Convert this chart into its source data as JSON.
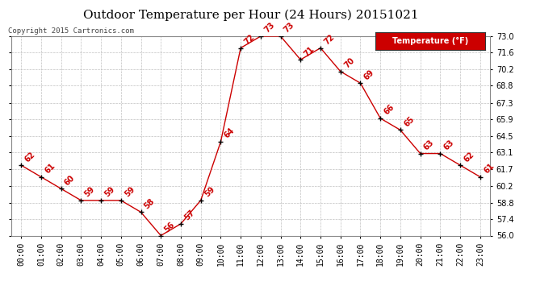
{
  "title": "Outdoor Temperature per Hour (24 Hours) 20151021",
  "copyright_text": "Copyright 2015 Cartronics.com",
  "legend_label": "Temperature (°F)",
  "hours": [
    0,
    1,
    2,
    3,
    4,
    5,
    6,
    7,
    8,
    9,
    10,
    11,
    12,
    13,
    14,
    15,
    16,
    17,
    18,
    19,
    20,
    21,
    22,
    23
  ],
  "temperatures": [
    62,
    61,
    60,
    59,
    59,
    59,
    58,
    56,
    57,
    59,
    64,
    72,
    73,
    73,
    71,
    72,
    70,
    69,
    66,
    65,
    63,
    63,
    62,
    61
  ],
  "x_labels": [
    "00:00",
    "01:00",
    "02:00",
    "03:00",
    "04:00",
    "05:00",
    "06:00",
    "07:00",
    "08:00",
    "09:00",
    "10:00",
    "11:00",
    "12:00",
    "13:00",
    "14:00",
    "15:00",
    "16:00",
    "17:00",
    "18:00",
    "19:00",
    "20:00",
    "21:00",
    "22:00",
    "23:00"
  ],
  "ylim": [
    56.0,
    73.0
  ],
  "yticks": [
    56.0,
    57.4,
    58.8,
    60.2,
    61.7,
    63.1,
    64.5,
    65.9,
    67.3,
    68.8,
    70.2,
    71.6,
    73.0
  ],
  "line_color": "#cc0000",
  "marker_color": "#000000",
  "label_color": "#cc0000",
  "bg_color": "#ffffff",
  "grid_color": "#c0c0c0",
  "title_fontsize": 11,
  "label_fontsize": 7,
  "tick_fontsize": 7,
  "legend_bg": "#cc0000",
  "legend_text_color": "#ffffff"
}
